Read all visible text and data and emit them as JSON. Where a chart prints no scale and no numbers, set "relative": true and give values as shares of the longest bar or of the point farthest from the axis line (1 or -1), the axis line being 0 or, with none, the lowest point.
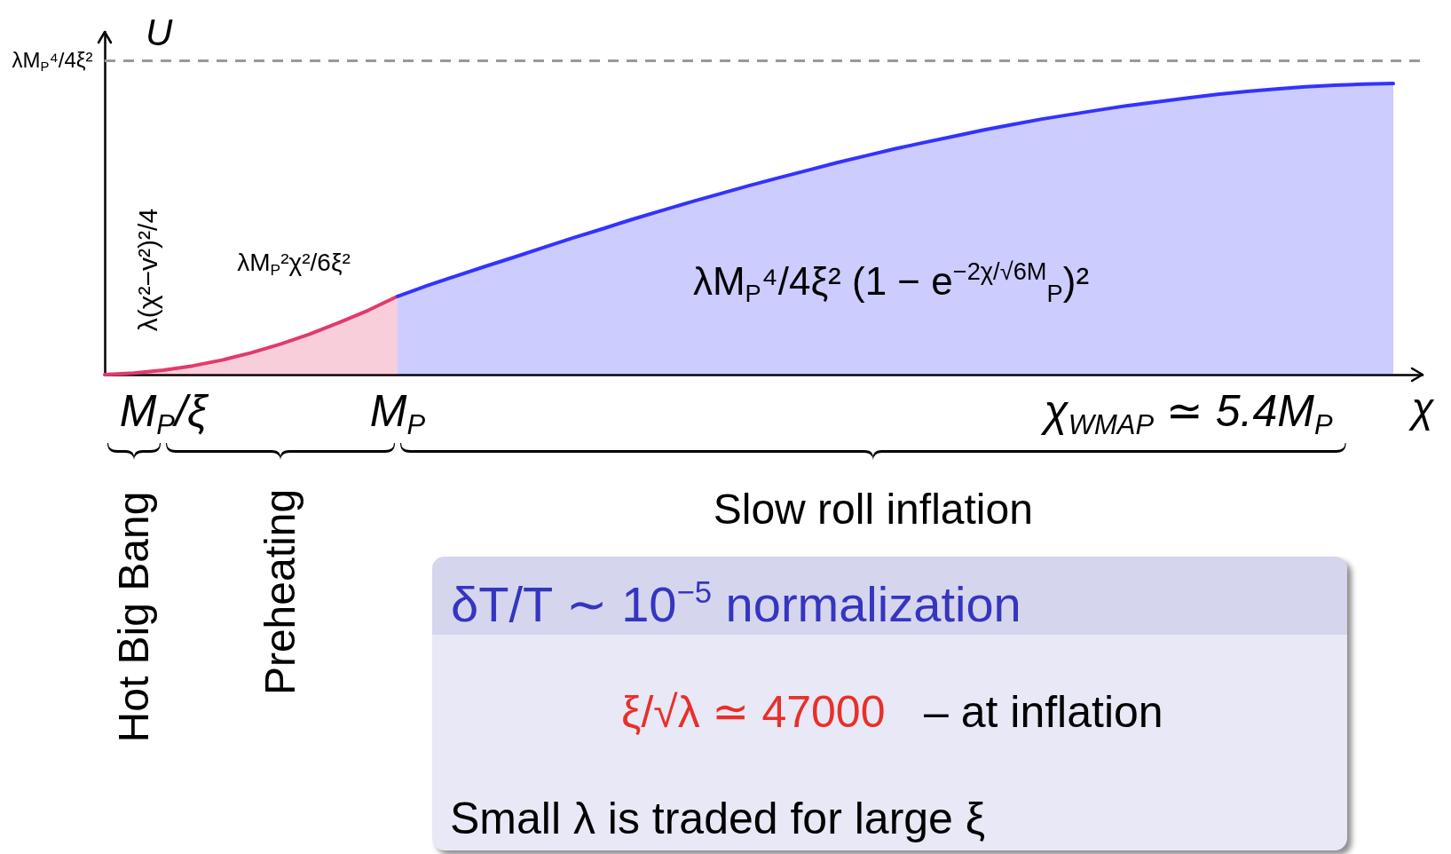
{
  "chart_data": {
    "type": "area",
    "relative": true,
    "xlabel": "χ",
    "ylabel": "U",
    "categories": [
      null,
      null,
      "M$_{P}$/ξ",
      null,
      null,
      null,
      null,
      null,
      null,
      null,
      "M$_{P}$",
      null,
      null,
      null,
      null,
      null,
      null,
      null,
      null,
      null,
      null,
      null,
      null,
      null,
      null,
      null,
      null,
      null,
      null,
      null,
      null,
      null,
      null,
      null,
      null,
      null,
      null,
      "χ$_{WMAP}$ ≃ 5.4M$_{P}$",
      null,
      null,
      null,
      null,
      null,
      null,
      null,
      null
    ],
    "series": [
      {
        "color": "#e23a6c",
        "values": [
          0,
          0.005,
          0.015,
          0.03,
          0.05,
          0.075,
          0.105,
          0.139,
          0.179,
          0.221,
          0.269,
          null,
          null,
          null,
          null,
          null,
          null,
          null,
          null,
          null,
          null,
          null,
          null,
          null,
          null,
          null,
          null,
          null,
          null,
          null,
          null,
          null,
          null,
          null,
          null,
          null,
          null,
          null,
          null,
          null,
          null,
          null,
          null,
          null,
          null,
          null
        ]
      },
      {
        "color": "#3333ff",
        "values": [
          null,
          null,
          null,
          null,
          null,
          null,
          null,
          null,
          null,
          null,
          0.269,
          0.305,
          0.339,
          0.372,
          0.404,
          0.437,
          0.47,
          0.501,
          0.533,
          0.563,
          0.593,
          0.621,
          0.649,
          0.676,
          0.702,
          0.728,
          0.752,
          0.776,
          0.798,
          0.819,
          0.84,
          0.859,
          0.878,
          0.894,
          0.91,
          0.925,
          0.938,
          0.951,
          0.963,
          0.973,
          0.981,
          0.989,
          0.994,
          0.998,
          1,
          null
        ]
      }
    ],
    "ref_lines": [
      {
        "axis": "y",
        "value": 1.08,
        "label": "λM$_{P}$⁴/4ξ²",
        "color": "#999999",
        "line_style": "dashed"
      }
    ],
    "annotations": [
      "λ(χ²−v²)²/4",
      "λM$_{P}$²χ²/6ξ²",
      "λM$_{P}$⁴/4ξ² (1 − e$^{−2χ/√6M}$$_{P}$)²",
      "Hot Big Bang",
      "Preheating",
      "Slow roll inflation",
      "δT/T ∼ 10$^{−5}$ normalization",
      "ξ/√λ ≃ 47000",
      "– at inflation",
      "Small λ is traded for large ξ"
    ]
  }
}
